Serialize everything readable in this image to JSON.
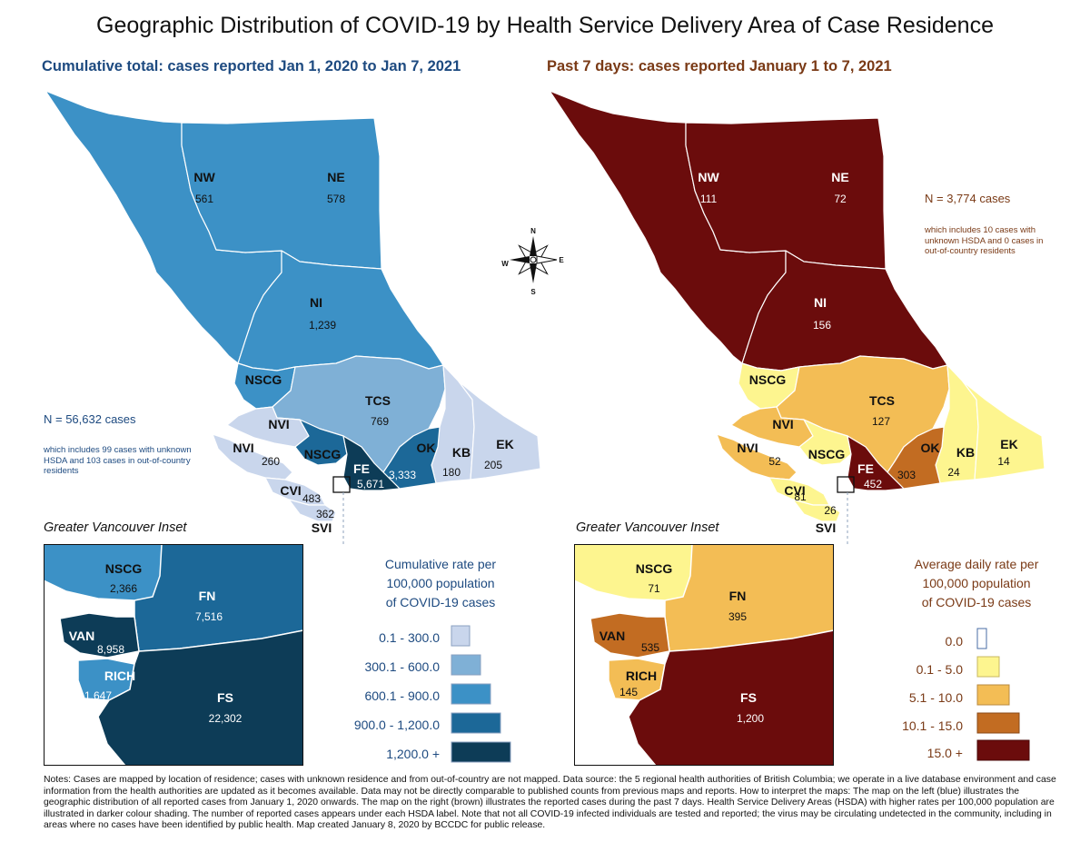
{
  "title": "Geographic Distribution of COVID-19 by Health Service Delivery Area of Case Residence",
  "colors": {
    "blue_1": "#c9d6ec",
    "blue_2": "#7fb0d6",
    "blue_3": "#3c91c6",
    "blue_4": "#1c6898",
    "blue_5": "#0d3c57",
    "rate_0": "#ffffff",
    "rate_1": "#fdf58f",
    "rate_2": "#f3bd55",
    "rate_3": "#c26c22",
    "rate_4": "#6b0c0c"
  },
  "left_map": {
    "subtitle": "Cumulative total: cases reported Jan 1, 2020 to Jan 7, 2021",
    "n_total": "N = 56,632 cases",
    "n_note": "which includes 99 cases with unknown HSDA and 103 cases in out-of-country residents",
    "regions": [
      {
        "code": "NW",
        "value": "561"
      },
      {
        "code": "NE",
        "value": "578"
      },
      {
        "code": "NI",
        "value": "1,239"
      },
      {
        "code": "NSCG",
        "value": ""
      },
      {
        "code": "TCS",
        "value": "769"
      },
      {
        "code": "NVI",
        "value": ""
      },
      {
        "code": "NVI",
        "value": "260"
      },
      {
        "code": "NSCG",
        "value": ""
      },
      {
        "code": "FE",
        "value": "5,671"
      },
      {
        "code": "OK",
        "value": "3,333"
      },
      {
        "code": "KB",
        "value": "180"
      },
      {
        "code": "EK",
        "value": "205"
      },
      {
        "code": "CVI",
        "value": "483"
      },
      {
        "code": "SVI",
        "value": "362"
      }
    ],
    "inset_title": "Greater Vancouver Inset",
    "inset_regions": [
      {
        "code": "NSCG",
        "value": "2,366"
      },
      {
        "code": "FN",
        "value": "7,516"
      },
      {
        "code": "VAN",
        "value": "8,958"
      },
      {
        "code": "RICH",
        "value": "1,647"
      },
      {
        "code": "FS",
        "value": "22,302"
      }
    ],
    "legend": {
      "title_lines": [
        "Cumulative rate per",
        "100,000 population",
        "of COVID-19 cases"
      ],
      "items": [
        {
          "label": "0.1 - 300.0",
          "color": "#c9d6ec"
        },
        {
          "label": "300.1 - 600.0",
          "color": "#7fb0d6"
        },
        {
          "label": "600.1 - 900.0",
          "color": "#3c91c6"
        },
        {
          "label": "900.0 - 1,200.0",
          "color": "#1c6898"
        },
        {
          "label": "1,200.0 +",
          "color": "#0d3c57"
        }
      ]
    }
  },
  "right_map": {
    "subtitle": "Past 7 days: cases reported January 1 to 7, 2021",
    "n_total": "N = 3,774 cases",
    "n_note": "which includes 10 cases with unknown HSDA and 0 cases in out-of-country residents",
    "regions": [
      {
        "code": "NW",
        "value": "111"
      },
      {
        "code": "NE",
        "value": "72"
      },
      {
        "code": "NI",
        "value": "156"
      },
      {
        "code": "NSCG",
        "value": ""
      },
      {
        "code": "TCS",
        "value": "127"
      },
      {
        "code": "NVI",
        "value": ""
      },
      {
        "code": "NVI",
        "value": "52"
      },
      {
        "code": "NSCG",
        "value": ""
      },
      {
        "code": "FE",
        "value": "452"
      },
      {
        "code": "OK",
        "value": "303"
      },
      {
        "code": "KB",
        "value": "24"
      },
      {
        "code": "EK",
        "value": "14"
      },
      {
        "code": "CVI",
        "value": "81"
      },
      {
        "code": "SVI",
        "value": "26"
      }
    ],
    "inset_title": "Greater Vancouver Inset",
    "inset_regions": [
      {
        "code": "NSCG",
        "value": "71"
      },
      {
        "code": "FN",
        "value": "395"
      },
      {
        "code": "VAN",
        "value": "535"
      },
      {
        "code": "RICH",
        "value": "145"
      },
      {
        "code": "FS",
        "value": "1,200"
      }
    ],
    "legend": {
      "title_lines": [
        "Average daily rate per",
        "100,000 population",
        "of COVID-19 cases"
      ],
      "items": [
        {
          "label": "0.0",
          "color": "#ffffff"
        },
        {
          "label": "0.1 - 5.0",
          "color": "#fdf58f"
        },
        {
          "label": "5.1 - 10.0",
          "color": "#f3bd55"
        },
        {
          "label": "10.1 - 15.0",
          "color": "#c26c22"
        },
        {
          "label": "15.0 +",
          "color": "#6b0c0c"
        }
      ]
    }
  },
  "compass": {
    "n": "N",
    "s": "S",
    "e": "E",
    "w": "W"
  },
  "footer": "Notes: Cases are mapped by location of residence; cases with unknown residence and from out-of-country are not mapped. Data source: the 5 regional health authorities of British Columbia; we operate in a live database environment and case information from the health authorities are updated as it becomes available. Data may not be directly comparable to published counts from previous maps and reports. How to interpret the maps: The map on the left (blue) illustrates the geographic distribution of all reported cases from January 1, 2020 onwards. The map on the right (brown) illustrates the reported cases during the past 7 days. Health Service Delivery Areas (HSDA) with higher rates per 100,000 population are illustrated in darker colour shading. The number of reported cases appears under each HSDA label. Note that not all COVID-19 infected individuals are tested and reported; the virus may be circulating undetected in the community, including in areas where no cases have been identified by public health. Map created January 8, 2020 by BCCDC for public release."
}
